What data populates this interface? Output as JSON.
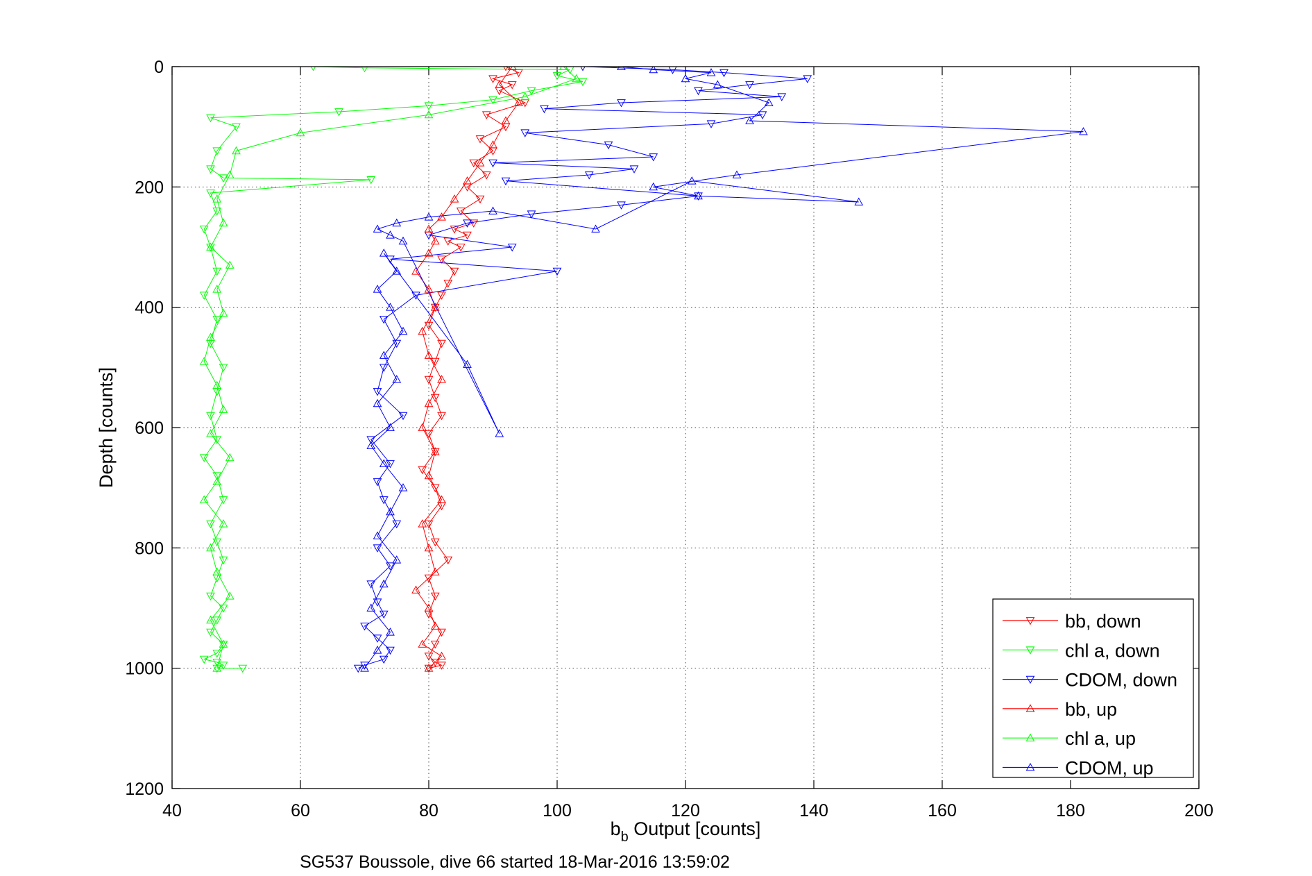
{
  "chart_data": {
    "type": "scatter",
    "xlabel_main": "b",
    "xlabel_sub": "b",
    "xlabel_rest": " Output [counts]",
    "ylabel": "Depth [counts]",
    "caption": "SG537 Boussole, dive 66 started 18-Mar-2016 13:59:02",
    "xlim": [
      40,
      200
    ],
    "ylim": [
      0,
      1200
    ],
    "y_reversed": true,
    "grid": true,
    "legend_position": "bottom-right",
    "xticks": [
      "40",
      "60",
      "80",
      "100",
      "120",
      "140",
      "160",
      "180",
      "200"
    ],
    "yticks": [
      "0",
      "200",
      "400",
      "600",
      "800",
      "1000",
      "1200"
    ],
    "series": [
      {
        "name": "bb, down",
        "color": "#ff0000",
        "marker": "triangle-down",
        "connected": true,
        "x": [
          92,
          94,
          90,
          93,
          91,
          95,
          89,
          92,
          88,
          90,
          87,
          89,
          86,
          88,
          85,
          87,
          84,
          86,
          83,
          85,
          82,
          84,
          83,
          82,
          81,
          80,
          82,
          81,
          80,
          81,
          82,
          80,
          81,
          79,
          81,
          82,
          80,
          81,
          83,
          80,
          81,
          80,
          82,
          81,
          80,
          81,
          82,
          80
        ],
        "y": [
          0,
          10,
          20,
          30,
          40,
          60,
          80,
          100,
          120,
          140,
          160,
          180,
          200,
          220,
          240,
          260,
          270,
          280,
          290,
          300,
          320,
          340,
          360,
          380,
          400,
          430,
          460,
          490,
          520,
          550,
          580,
          610,
          640,
          670,
          700,
          730,
          760,
          790,
          820,
          850,
          880,
          910,
          940,
          960,
          980,
          990,
          995,
          1000
        ]
      },
      {
        "name": "chl a, down",
        "color": "#00ff00",
        "marker": "triangle-down",
        "connected": true,
        "x": [
          62,
          70,
          102,
          100,
          104,
          96,
          90,
          80,
          66,
          46,
          50,
          47,
          46,
          48,
          71,
          46,
          47,
          45,
          46,
          47,
          45,
          47,
          46,
          48,
          47,
          46,
          47,
          45,
          47,
          48,
          46,
          47,
          48,
          47,
          46,
          48,
          47,
          46,
          48,
          47,
          45,
          47,
          48,
          47,
          51
        ],
        "y": [
          0,
          2,
          5,
          15,
          25,
          40,
          55,
          65,
          75,
          85,
          100,
          140,
          170,
          185,
          188,
          210,
          240,
          270,
          300,
          340,
          380,
          420,
          460,
          500,
          540,
          580,
          620,
          650,
          680,
          720,
          760,
          790,
          820,
          850,
          880,
          900,
          920,
          940,
          960,
          975,
          985,
          990,
          995,
          1000,
          1000
        ]
      },
      {
        "name": "CDOM, down",
        "color": "#0000ff",
        "marker": "triangle-down",
        "connected": true,
        "x": [
          104,
          118,
          126,
          139,
          130,
          122,
          135,
          110,
          98,
          132,
          124,
          95,
          108,
          115,
          90,
          112,
          105,
          92,
          122,
          110,
          96,
          86,
          80,
          93,
          74,
          100,
          78,
          73,
          75,
          73,
          72,
          76,
          71,
          74,
          72,
          73,
          75,
          72,
          74,
          71,
          72,
          73,
          70,
          72,
          74,
          73,
          70,
          69
        ],
        "y": [
          0,
          5,
          10,
          20,
          30,
          40,
          50,
          60,
          70,
          80,
          95,
          110,
          130,
          150,
          160,
          170,
          180,
          190,
          215,
          230,
          245,
          260,
          280,
          300,
          320,
          340,
          380,
          420,
          460,
          500,
          540,
          580,
          620,
          660,
          690,
          720,
          760,
          800,
          830,
          860,
          890,
          910,
          930,
          950,
          970,
          985,
          995,
          1000
        ]
      },
      {
        "name": "bb, up",
        "color": "#ff0000",
        "marker": "triangle-up",
        "connected": true,
        "x": [
          80,
          82,
          79,
          81,
          80,
          78,
          81,
          80,
          79,
          82,
          80,
          81,
          79,
          80,
          82,
          80,
          79,
          81,
          80,
          78,
          80,
          81,
          80,
          82,
          84,
          86,
          88,
          90,
          92,
          94,
          91,
          93
        ],
        "y": [
          1000,
          980,
          960,
          930,
          900,
          870,
          840,
          800,
          760,
          720,
          680,
          640,
          600,
          560,
          520,
          480,
          440,
          400,
          370,
          340,
          310,
          290,
          270,
          250,
          220,
          190,
          160,
          130,
          90,
          60,
          30,
          0
        ]
      },
      {
        "name": "chl a, up",
        "color": "#00ff00",
        "marker": "triangle-up",
        "connected": true,
        "x": [
          47,
          48,
          46,
          49,
          47,
          46,
          48,
          45,
          47,
          49,
          46,
          48,
          47,
          45,
          46,
          48,
          47,
          49,
          46,
          48,
          47,
          49,
          50,
          60,
          80,
          95,
          103,
          101
        ],
        "y": [
          1000,
          960,
          920,
          880,
          840,
          800,
          760,
          720,
          690,
          650,
          610,
          570,
          530,
          490,
          450,
          410,
          370,
          330,
          300,
          260,
          220,
          180,
          140,
          110,
          80,
          50,
          20,
          0
        ]
      },
      {
        "name": "CDOM, up",
        "color": "#0000ff",
        "marker": "triangle-up",
        "connected": true,
        "x": [
          70,
          72,
          74,
          71,
          73,
          75,
          72,
          74,
          76,
          73,
          71,
          74,
          72,
          75,
          73,
          76,
          74,
          72,
          75,
          73,
          86,
          91,
          76,
          74,
          72,
          75,
          80,
          90,
          106,
          121,
          147,
          122,
          115,
          128,
          182,
          130,
          133,
          125,
          120,
          124,
          115,
          110
        ],
        "y": [
          1000,
          970,
          940,
          900,
          860,
          820,
          780,
          740,
          700,
          660,
          630,
          600,
          560,
          520,
          480,
          440,
          400,
          370,
          340,
          310,
          495,
          610,
          290,
          280,
          270,
          260,
          250,
          240,
          270,
          190,
          225,
          215,
          200,
          180,
          108,
          90,
          60,
          30,
          20,
          10,
          5,
          0
        ]
      }
    ]
  }
}
